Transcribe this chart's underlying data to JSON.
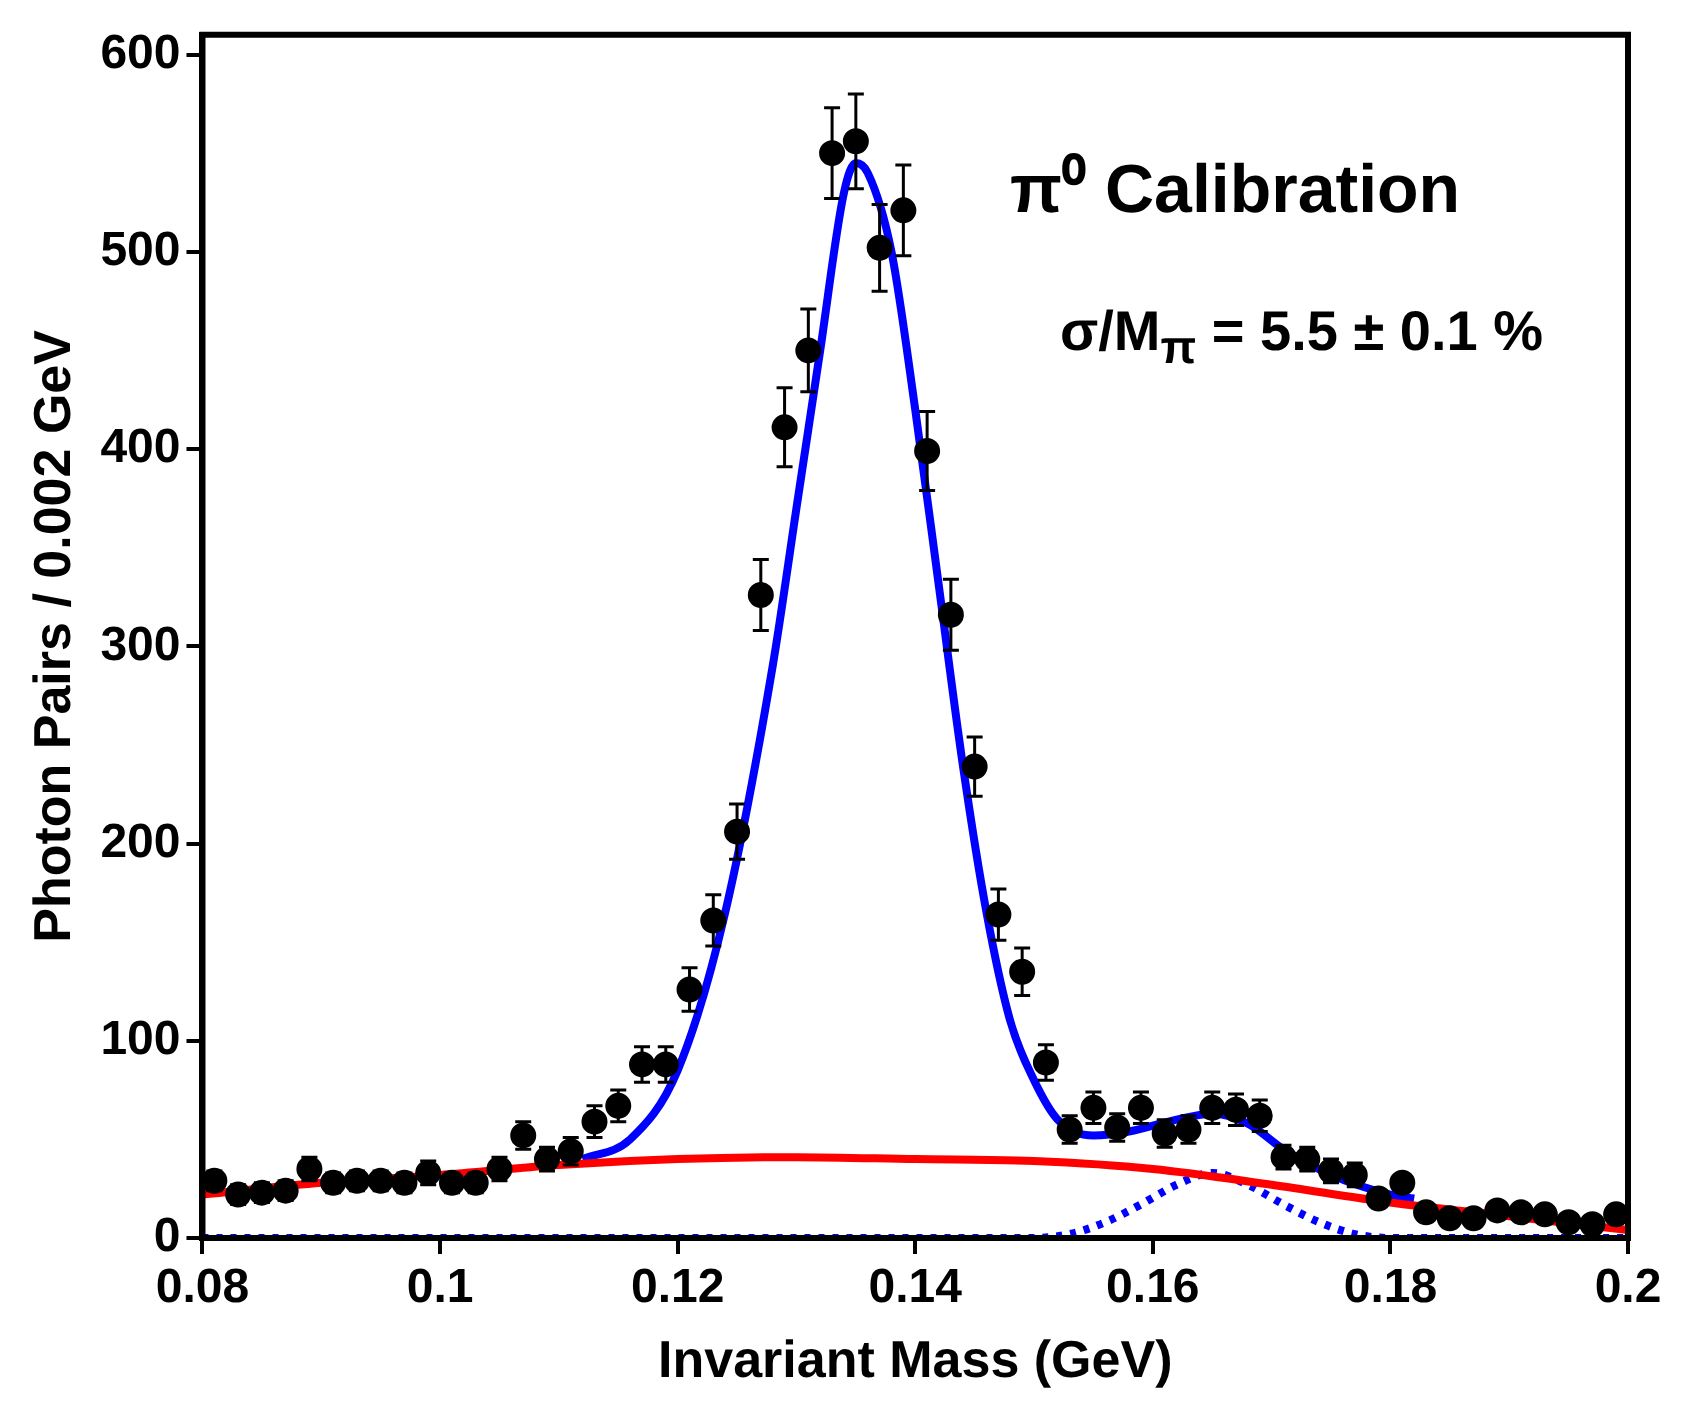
{
  "chart_data": {
    "type": "scatter",
    "xlabel": "Invariant Mass (GeV)",
    "ylabel": "Photon Pairs / 0.002 GeV",
    "annotations": [
      "π⁰ Calibration",
      "σ/M$_{π}$ = 5.5 ± 0.1 %"
    ],
    "xlim": [
      0.08,
      0.2
    ],
    "xticks": [
      0.08,
      0.1,
      0.12,
      0.14,
      0.16,
      0.18,
      0.2
    ],
    "ylim": [
      0,
      610
    ],
    "yticks": [
      0,
      100,
      200,
      300,
      400,
      500,
      600
    ],
    "grid": false,
    "legend": false,
    "series": [
      {
        "color": "#000000",
        "marker": "circle",
        "x": [
          0.081,
          0.083,
          0.085,
          0.087,
          0.089,
          0.091,
          0.093,
          0.095,
          0.097,
          0.099,
          0.101,
          0.103,
          0.105,
          0.107,
          0.109,
          0.111,
          0.113,
          0.115,
          0.117,
          0.119,
          0.121,
          0.123,
          0.125,
          0.127,
          0.129,
          0.131,
          0.133,
          0.135,
          0.137,
          0.139,
          0.141,
          0.143,
          0.145,
          0.147,
          0.149,
          0.151,
          0.153,
          0.155,
          0.157,
          0.159,
          0.161,
          0.163,
          0.165,
          0.167,
          0.169,
          0.171,
          0.173,
          0.175,
          0.177,
          0.179,
          0.181,
          0.183,
          0.185,
          0.187,
          0.189,
          0.191,
          0.193,
          0.195,
          0.197,
          0.199
        ],
        "values": [
          29,
          22,
          23,
          24,
          35,
          28,
          29,
          29,
          28,
          33,
          28,
          28,
          35,
          52,
          40,
          44,
          59,
          67,
          88,
          88,
          126,
          161,
          206,
          326,
          411,
          450,
          550,
          556,
          502,
          521,
          399,
          316,
          239,
          164,
          135,
          89,
          55,
          66,
          56,
          66,
          53,
          55,
          66,
          65,
          62,
          41,
          40,
          34,
          32,
          20,
          28,
          13,
          10,
          10,
          14,
          13,
          12,
          8,
          7,
          12
        ],
        "errors": [
          5,
          5,
          5,
          5,
          6,
          5,
          5,
          5,
          5,
          6,
          5,
          5,
          6,
          7,
          6,
          7,
          8,
          8,
          9,
          9,
          11,
          13,
          14,
          18,
          20,
          21,
          23,
          24,
          22,
          23,
          20,
          18,
          15,
          13,
          12,
          9,
          7,
          8,
          7,
          8,
          7,
          7,
          8,
          8,
          8,
          6,
          6,
          6,
          6,
          null,
          null,
          null,
          null,
          null,
          null,
          null,
          null,
          null,
          null,
          null
        ]
      },
      {
        "type": "line",
        "color": "#ff0000",
        "marker": "none",
        "line_style": "solid",
        "x": [
          0.08,
          0.09,
          0.1,
          0.11,
          0.12,
          0.13,
          0.14,
          0.15,
          0.16,
          0.17,
          0.18,
          0.19,
          0.2
        ],
        "values": [
          22,
          28,
          32,
          37,
          40,
          41,
          40,
          39,
          35,
          27,
          18,
          11,
          4
        ]
      },
      {
        "type": "line",
        "color": "#0000ff",
        "marker": "none",
        "line_style": "dotted",
        "x": [
          0.08,
          0.15,
          0.153,
          0.156,
          0.159,
          0.162,
          0.165,
          0.168,
          0.171,
          0.174,
          0.177,
          0.18,
          0.2
        ],
        "values": [
          0,
          0,
          2,
          8,
          17,
          27,
          33,
          27,
          17,
          8,
          2,
          0,
          0
        ]
      },
      {
        "type": "line",
        "color": "#0000ff",
        "marker": "none",
        "line_style": "solid",
        "x": [
          0.112,
          0.116,
          0.12,
          0.124,
          0.128,
          0.13,
          0.132,
          0.134,
          0.135,
          0.136,
          0.138,
          0.14,
          0.142,
          0.144,
          0.146,
          0.148,
          0.15,
          0.152,
          0.155,
          0.158,
          0.162,
          0.165,
          0.168,
          0.171,
          0.175,
          0.18,
          0.182
        ],
        "values": [
          40,
          50,
          85,
          165,
          290,
          370,
          450,
          530,
          545,
          540,
          500,
          420,
          330,
          240,
          165,
          110,
          80,
          60,
          52,
          54,
          60,
          63,
          58,
          45,
          32,
          22,
          20
        ]
      }
    ]
  }
}
